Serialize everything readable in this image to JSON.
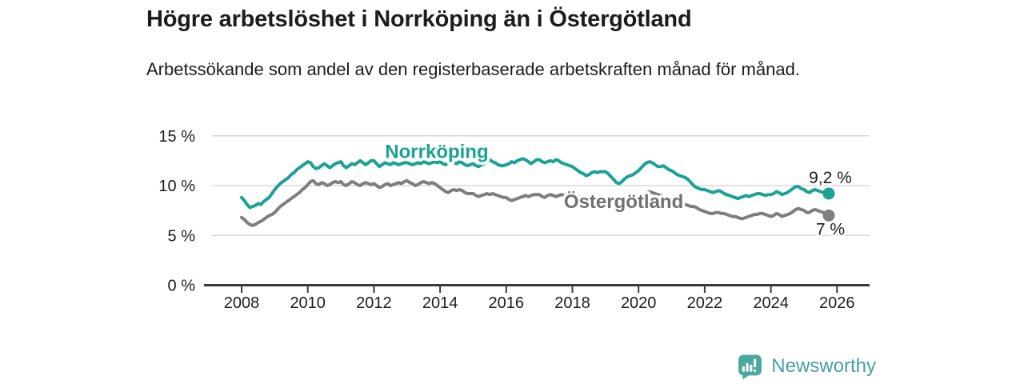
{
  "header": {
    "title": "Högre arbetslöshet i Norrköping än i Östergötland",
    "subtitle": "Arbetssökande som andel av den registerbaserade arbetskraften månad för månad."
  },
  "chart_data": {
    "type": "line",
    "x_unit": "months",
    "start_year": 2008,
    "points_per_year": 12,
    "ylim": [
      0,
      15
    ],
    "y_ticks": [
      0,
      5,
      10,
      15
    ],
    "y_tick_labels": [
      "0 %",
      "5 %",
      "10 %",
      "15 %"
    ],
    "x_ticks": [
      2008,
      2010,
      2012,
      2014,
      2016,
      2018,
      2020,
      2022,
      2024,
      2026
    ],
    "grid": "horizontal",
    "legend_position": "inline-labels",
    "colors": {
      "accent": "#1aa294",
      "secondary": "#7e7e7e",
      "axis": "#3a3a3a",
      "grid": "#d8d8d8",
      "text": "#1c1c1c"
    },
    "series": [
      {
        "name": "Östergötland",
        "color": "#7e7e7e",
        "label_color": "#707070",
        "end_label": "7 %",
        "end_label_side": "below",
        "inline_label_pos": {
          "year": 2019.55,
          "value": 8.4
        },
        "values": [
          6.8,
          6.6,
          6.3,
          6.1,
          6.0,
          6.1,
          6.3,
          6.4,
          6.6,
          6.8,
          7.0,
          7.1,
          7.3,
          7.6,
          7.9,
          8.1,
          8.3,
          8.5,
          8.7,
          8.9,
          9.1,
          9.3,
          9.6,
          9.8,
          10.1,
          10.4,
          10.5,
          10.2,
          10.1,
          10.3,
          10.2,
          10.0,
          10.1,
          10.3,
          10.4,
          10.3,
          10.4,
          10.1,
          10.0,
          10.2,
          10.4,
          10.3,
          10.1,
          10.0,
          10.2,
          10.3,
          10.2,
          10.1,
          10.2,
          10.0,
          9.8,
          9.9,
          10.1,
          10.2,
          10.0,
          10.1,
          10.2,
          10.3,
          10.2,
          10.4,
          10.5,
          10.3,
          10.2,
          10.0,
          10.1,
          10.3,
          10.4,
          10.3,
          10.2,
          10.3,
          10.2,
          10.0,
          9.8,
          9.6,
          9.4,
          9.3,
          9.5,
          9.6,
          9.5,
          9.6,
          9.5,
          9.3,
          9.2,
          9.2,
          9.2,
          9.0,
          8.9,
          9.0,
          9.1,
          9.2,
          9.1,
          9.2,
          9.1,
          9.0,
          8.9,
          8.8,
          8.8,
          8.6,
          8.5,
          8.6,
          8.7,
          8.8,
          8.9,
          9.0,
          8.9,
          9.0,
          9.1,
          9.1,
          9.1,
          8.9,
          8.8,
          9.0,
          9.1,
          9.0,
          8.9,
          9.0,
          9.1,
          9.0,
          8.9,
          8.8,
          8.9,
          9.0,
          8.9,
          8.8,
          8.7,
          8.6,
          8.5,
          8.4,
          8.5,
          8.6,
          8.5,
          8.4,
          8.4,
          8.3,
          8.2,
          8.1,
          8.0,
          8.1,
          8.2,
          8.3,
          8.4,
          8.5,
          8.6,
          8.7,
          8.8,
          8.9,
          9.1,
          9.3,
          9.4,
          9.3,
          9.2,
          9.1,
          9.0,
          8.9,
          8.8,
          8.7,
          8.6,
          8.5,
          8.4,
          8.3,
          8.2,
          8.1,
          8.0,
          7.9,
          7.9,
          7.8,
          7.6,
          7.5,
          7.4,
          7.3,
          7.2,
          7.2,
          7.3,
          7.3,
          7.2,
          7.2,
          7.1,
          7.0,
          6.9,
          6.9,
          6.8,
          6.7,
          6.7,
          6.8,
          6.9,
          7.0,
          7.1,
          7.1,
          7.2,
          7.2,
          7.1,
          7.0,
          6.9,
          7.0,
          7.2,
          7.1,
          6.9,
          7.0,
          7.1,
          7.2,
          7.4,
          7.6,
          7.7,
          7.6,
          7.5,
          7.3,
          7.3,
          7.5,
          7.6,
          7.5,
          7.4,
          7.3,
          7.1,
          7.0
        ]
      },
      {
        "name": "Norrköping",
        "color": "#1aa294",
        "label_color": "#1aa294",
        "end_label": "9,2 %",
        "end_label_side": "above",
        "inline_label_pos": {
          "year": 2013.9,
          "value": 13.42
        },
        "values": [
          8.8,
          8.5,
          8.1,
          7.8,
          7.9,
          8.0,
          8.2,
          8.1,
          8.4,
          8.6,
          8.8,
          9.2,
          9.6,
          9.9,
          10.2,
          10.4,
          10.6,
          10.8,
          11.1,
          11.3,
          11.6,
          11.8,
          12.0,
          12.2,
          12.4,
          12.3,
          11.9,
          11.7,
          11.8,
          12.0,
          12.2,
          12.0,
          11.8,
          12.0,
          12.2,
          12.3,
          12.4,
          12.0,
          11.8,
          12.0,
          12.2,
          12.1,
          12.3,
          12.5,
          12.3,
          12.1,
          12.3,
          12.5,
          12.5,
          12.2,
          11.9,
          12.1,
          12.3,
          12.2,
          12.1,
          12.3,
          12.2,
          12.1,
          12.2,
          12.3,
          12.3,
          12.2,
          12.1,
          12.2,
          12.3,
          12.2,
          12.4,
          12.3,
          12.2,
          12.3,
          12.4,
          12.3,
          12.4,
          12.2,
          12.1,
          12.3,
          12.4,
          12.3,
          12.2,
          12.4,
          12.3,
          12.1,
          12.0,
          12.1,
          12.2,
          12.0,
          11.9,
          12.1,
          12.2,
          12.4,
          12.6,
          12.4,
          12.3,
          12.1,
          12.0,
          12.0,
          12.1,
          12.2,
          12.4,
          12.3,
          12.5,
          12.6,
          12.7,
          12.6,
          12.4,
          12.2,
          12.4,
          12.6,
          12.6,
          12.4,
          12.3,
          12.4,
          12.5,
          12.4,
          12.6,
          12.5,
          12.3,
          12.2,
          12.1,
          12.0,
          11.9,
          11.7,
          11.5,
          11.3,
          11.2,
          11.0,
          11.1,
          11.3,
          11.4,
          11.3,
          11.4,
          11.4,
          11.4,
          11.2,
          10.9,
          10.6,
          10.3,
          10.2,
          10.4,
          10.7,
          10.9,
          11.0,
          11.1,
          11.3,
          11.5,
          11.8,
          12.1,
          12.3,
          12.4,
          12.3,
          12.1,
          11.9,
          11.9,
          12.0,
          11.8,
          11.6,
          11.5,
          11.3,
          11.1,
          11.0,
          10.9,
          10.8,
          10.6,
          10.3,
          10.0,
          9.8,
          9.7,
          9.6,
          9.6,
          9.5,
          9.4,
          9.3,
          9.4,
          9.5,
          9.4,
          9.2,
          9.1,
          9.0,
          8.9,
          8.8,
          8.7,
          8.8,
          8.9,
          9.0,
          8.9,
          9.0,
          9.1,
          9.2,
          9.2,
          9.1,
          9.0,
          9.1,
          9.1,
          9.2,
          9.4,
          9.3,
          9.1,
          9.2,
          9.3,
          9.5,
          9.7,
          9.9,
          9.9,
          9.7,
          9.6,
          9.4,
          9.3,
          9.5,
          9.6,
          9.5,
          9.4,
          9.3,
          9.3,
          9.2
        ]
      }
    ]
  },
  "footer": {
    "brand": "Newsworthy",
    "brand_color": "#46a09b",
    "logo_icon": "bar-chart-speech-bubble-icon"
  }
}
